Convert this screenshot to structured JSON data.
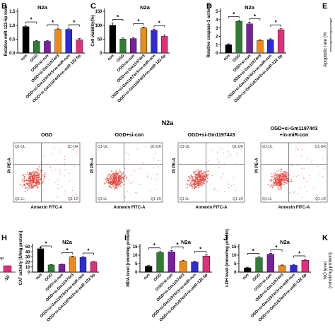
{
  "figure": {
    "section_title": "N2a"
  },
  "chart_data": [
    {
      "panel": "B",
      "type": "bar",
      "title": "N2a",
      "ylabel": "Relative miR-122-5p level",
      "ylim": [
        0,
        1.5
      ],
      "yticks": [
        "0.0",
        "0.5",
        "1.0",
        "1.5"
      ],
      "categories": [
        "con",
        "OGD",
        "OGD+si-con",
        "OGD+si-Gm11974#3",
        "OGD+si-Gm11974#3+in-miR-con",
        "OGD+si-Gm11974#3+in-miR-122-5p"
      ],
      "values": [
        0.95,
        0.42,
        0.42,
        0.85,
        0.85,
        0.48
      ],
      "errors": [
        0.04,
        0.03,
        0.03,
        0.04,
        0.04,
        0.04
      ],
      "colors": [
        "#000000",
        "#2e7d32",
        "#7b1fa2",
        "#ef8a17",
        "#2d2bd6",
        "#e0307a"
      ],
      "annotations": [
        "*",
        "*",
        "*"
      ]
    },
    {
      "panel": "C",
      "type": "bar",
      "title": "N2a",
      "ylabel": "Cell viability(%)",
      "ylim": [
        0,
        150
      ],
      "yticks": [
        "0",
        "50",
        "100",
        "150"
      ],
      "categories": [
        "con",
        "OGD",
        "OGD+si-con",
        "OGD+si-Gm11974#3",
        "OGD+si-Gm11974#3+in-miR-con",
        "OGD+si-Gm11974#3+in-miR-122-5p"
      ],
      "values": [
        100,
        50,
        52,
        90,
        82,
        60
      ],
      "errors": [
        8,
        4,
        4,
        3,
        4,
        5
      ],
      "colors": [
        "#000000",
        "#2e7d32",
        "#7b1fa2",
        "#ef8a17",
        "#2d2bd6",
        "#e0307a"
      ],
      "annotations": [
        "*",
        "*",
        "*"
      ]
    },
    {
      "panel": "D",
      "type": "bar",
      "title": "N2a",
      "ylabel": "Relative caspase-3 activity",
      "ylim": [
        0,
        5
      ],
      "yticks": [
        "0",
        "1",
        "2",
        "3",
        "4",
        "5"
      ],
      "categories": [
        "con",
        "OGD",
        "OGD+si-con",
        "OGD+si-Gm11974#3",
        "OGD+si-Gm11974#3+in-miR-con",
        "OGD+si-Gm11974#3+in-miR-122-5p"
      ],
      "values": [
        1.0,
        3.8,
        3.5,
        1.5,
        1.6,
        2.8
      ],
      "errors": [
        0.1,
        0.15,
        0.2,
        0.1,
        0.1,
        0.15
      ],
      "colors": [
        "#000000",
        "#2e7d32",
        "#7b1fa2",
        "#ef8a17",
        "#2d2bd6",
        "#e0307a"
      ],
      "annotations": [
        "*",
        "*",
        "*"
      ]
    },
    {
      "panel": "H",
      "type": "bar",
      "title": "N2a",
      "ylabel": "CAT activity (U/mg protein)",
      "ylim": [
        0,
        50
      ],
      "yticks": [
        "0",
        "10",
        "20",
        "30",
        "40",
        "50"
      ],
      "categories": [
        "con",
        "OGD",
        "OGD+si-con",
        "OGD+si-Gm11974#3",
        "OGD+si-Gm11974#3+in-miR-con",
        "OGD+si-Gm11974#3+in-miR-122-5p"
      ],
      "values": [
        46,
        14,
        15,
        30,
        29,
        20
      ],
      "errors": [
        2,
        1,
        1,
        1.5,
        1.5,
        1
      ],
      "colors": [
        "#000000",
        "#2e7d32",
        "#7b1fa2",
        "#ef8a17",
        "#2d2bd6",
        "#e0307a"
      ],
      "annotations": [
        "*",
        "*",
        "*"
      ]
    },
    {
      "panel": "I",
      "type": "bar",
      "title": "N2a",
      "ylabel": "MDA level (nmol/mg protein)",
      "ylim": [
        0,
        15
      ],
      "yticks": [
        "0",
        "5",
        "10",
        "15"
      ],
      "categories": [
        "con",
        "OGD",
        "OGD+si-con",
        "OGD+si-Gm11974#3",
        "OGD+si-Gm11974#3+in-miR-con",
        "OGD+si-Gm11974#3+in-miR-122-5p"
      ],
      "values": [
        3.5,
        11.5,
        12,
        6.5,
        6.0,
        9.5
      ],
      "errors": [
        0.5,
        0.7,
        0.8,
        0.5,
        0.5,
        0.6
      ],
      "colors": [
        "#000000",
        "#2e7d32",
        "#7b1fa2",
        "#ef8a17",
        "#2d2bd6",
        "#e0307a"
      ],
      "annotations": [
        "*",
        "*",
        "*"
      ]
    },
    {
      "panel": "J",
      "type": "bar",
      "title": "N2a",
      "ylabel": "LDH level (mmol/mg protein)",
      "ylim": [
        0,
        15
      ],
      "yticks": [
        "0",
        "5",
        "10",
        "15"
      ],
      "categories": [
        "con",
        "OGD",
        "OGD+si-con",
        "OGD+si-Gm11974#3",
        "OGD+si-Gm11974#3+in-miR-con",
        "OGD+si-Gm11974#3+in-miR-122-5p"
      ],
      "values": [
        2.5,
        8.5,
        10.5,
        3.8,
        4.0,
        7.0
      ],
      "errors": [
        0.4,
        0.5,
        0.6,
        0.4,
        0.4,
        0.5
      ],
      "colors": [
        "#000000",
        "#2e7d32",
        "#7b1fa2",
        "#ef8a17",
        "#2d2bd6",
        "#e0307a"
      ],
      "annotations": [
        "*",
        "*",
        "*"
      ]
    }
  ],
  "flow_panels": [
    {
      "title": "OGD",
      "quadrants": [
        "Q1-UL",
        "Q1-UR",
        "Q1-LL",
        "Q1-LR"
      ],
      "xlabel": "Annexin FITC-A",
      "ylabel": "PI PE-A"
    },
    {
      "title": "OGD+si-con",
      "quadrants": [
        "Q1-UL",
        "Q1-UR",
        "Q1-LL",
        "Q1-LR"
      ],
      "xlabel": "Annexin FITC-A",
      "ylabel": "PI PE-A"
    },
    {
      "title": "OGD+si-Gm11974#3",
      "quadrants": [
        "Q1-UL",
        "Q1-UR",
        "Q1-LL",
        "Q1-LR"
      ],
      "xlabel": "Annexin FITC-A",
      "ylabel": "PI PE-A"
    },
    {
      "title": "OGD+si-Gm11974#3",
      "title2": "+in-miR-con",
      "quadrants": [
        "Q1-UL",
        "Q1-UR",
        "Q1-LL",
        "Q1-LR"
      ],
      "xlabel": "Annexin FITC-A",
      "ylabel": "PI PE-A"
    }
  ],
  "partial_panels": {
    "E": {
      "label": "E",
      "ylabel": "Apoptotic rate (%"
    },
    "K": {
      "label": "K",
      "ylabel": "NO level",
      "ylabel2": "(nmol/mg protein)"
    },
    "G_stub": {
      "tick": "-5p"
    }
  },
  "colors": {
    "accent_red": "#e31a1c",
    "scatter_red": "#e8433a"
  }
}
